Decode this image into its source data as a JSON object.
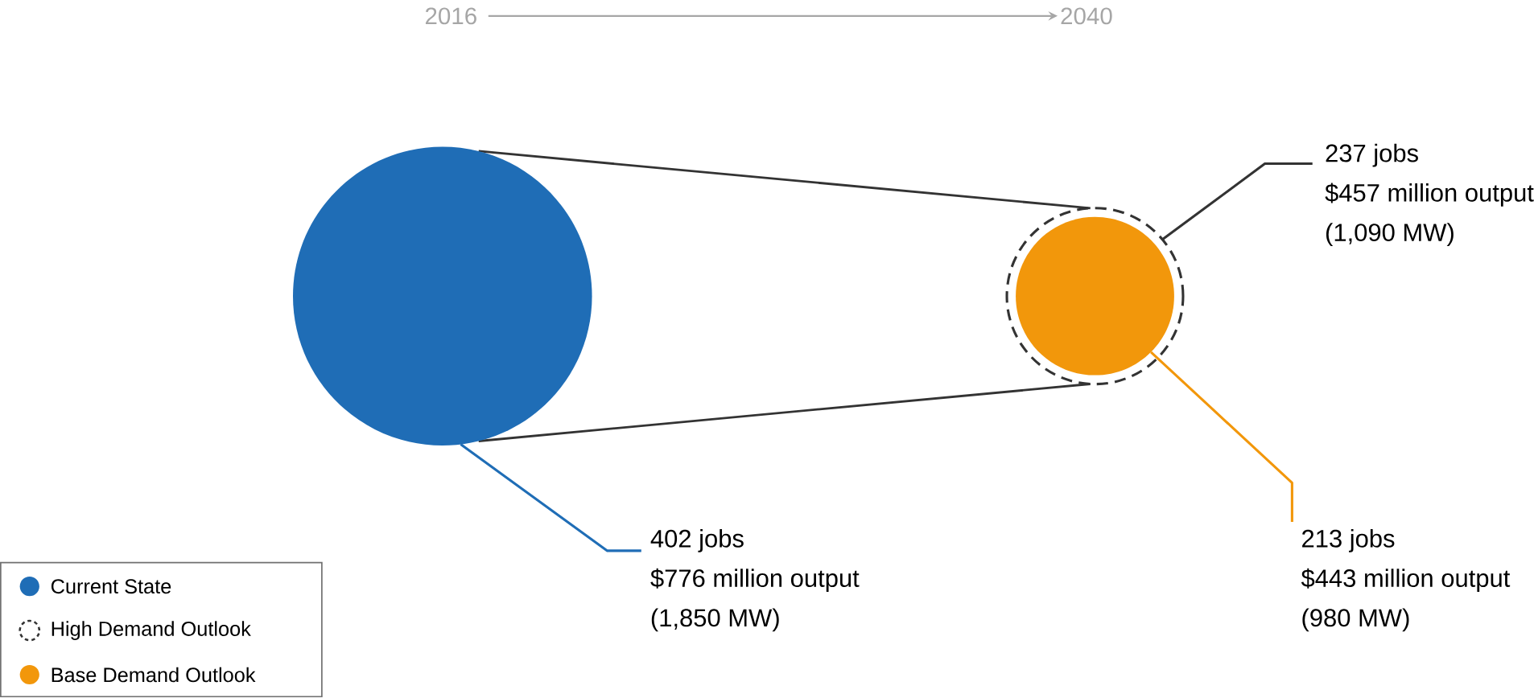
{
  "chart_data": {
    "type": "other",
    "categories": [
      "2016",
      "2040"
    ],
    "series": [
      {
        "name": "Current State",
        "color": "#1f6db6",
        "values": [
          1850,
          null
        ],
        "value_labels": [
          "(1,850 MW)",
          null
        ]
      },
      {
        "name": "High Demand Outlook",
        "color": "#333333",
        "line_style": "dashed",
        "values": [
          null,
          1090
        ],
        "value_labels": [
          null,
          "(1,090 MW)"
        ]
      },
      {
        "name": "Base Demand Outlook",
        "color": "#f2970b",
        "values": [
          null,
          980
        ],
        "value_labels": [
          null,
          "(980 MW)"
        ]
      }
    ],
    "annotations": [
      "402 jobs",
      "$776 million output",
      "237 jobs",
      "$457 million output",
      "213 jobs",
      "$443 million output"
    ],
    "legend": "bottom left"
  }
}
